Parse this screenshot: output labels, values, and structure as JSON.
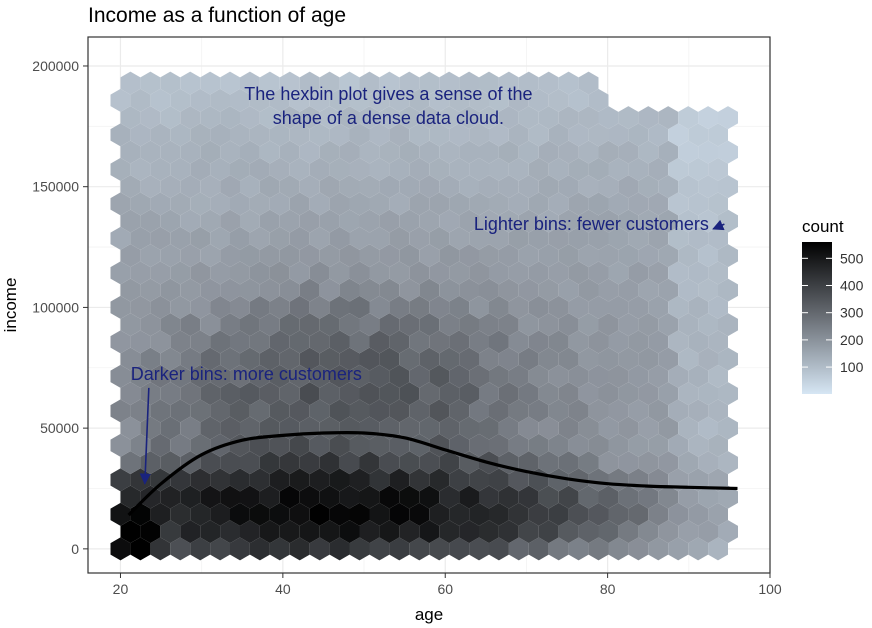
{
  "chart_data": {
    "type": "hexbin",
    "title": "Income as a function of age",
    "xlabel": "age",
    "ylabel": "income",
    "xlim": [
      16,
      100
    ],
    "ylim": [
      -10000,
      212000
    ],
    "x_ticks": [
      20,
      40,
      60,
      80,
      100
    ],
    "y_ticks": [
      0,
      50000,
      100000,
      150000,
      200000
    ],
    "grid": true,
    "legend": {
      "title": "count",
      "placement": "right",
      "breaks": [
        100,
        200,
        300,
        400,
        500
      ],
      "range": [
        1,
        560
      ],
      "colors": [
        "#d6e6f4",
        "#000000"
      ]
    },
    "smooth_curve": {
      "x": [
        21,
        25,
        30,
        35,
        40,
        45,
        50,
        55,
        60,
        65,
        70,
        75,
        80,
        85,
        90,
        96
      ],
      "y": [
        14000,
        27000,
        39000,
        45000,
        47000,
        48000,
        48000,
        46000,
        41000,
        36000,
        32000,
        29000,
        27000,
        26000,
        25500,
        25000
      ],
      "color": "#000000"
    },
    "annotations": [
      {
        "text": "The hexbin plot gives a sense of the",
        "x": 53,
        "y": 186000
      },
      {
        "text": "shape of a dense data cloud.",
        "x": 53,
        "y": 176000
      },
      {
        "text": "Lighter bins: fewer customers",
        "x": 78,
        "y": 132000,
        "arrow_to": [
          93,
          132500
        ]
      },
      {
        "text": "Darker bins: more customers",
        "x": 35.5,
        "y": 70000,
        "arrow_to": [
          23,
          27000
        ]
      }
    ],
    "density_model": {
      "dense_band_age_range": [
        20,
        75
      ],
      "dense_band_income_range": [
        0,
        40000
      ],
      "sparse_region_max_age": 96,
      "sparse_region_max_income": 200000
    }
  }
}
